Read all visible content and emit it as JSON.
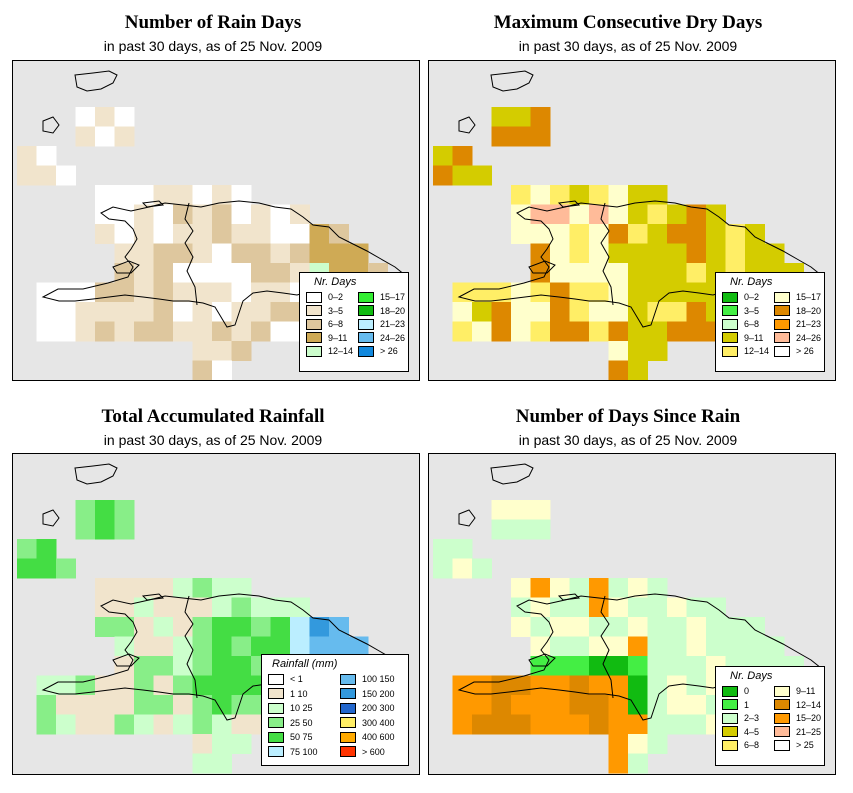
{
  "panels": [
    {
      "id": "rain-days",
      "title": "Number of Rain Days",
      "subtitle": "in past 30 days, as of  25 Nov. 2009",
      "legend": {
        "title": "Nr. Days",
        "items": [
          {
            "label": "0–2",
            "color": "#ffffff"
          },
          {
            "label": "3–5",
            "color": "#f1e4cc"
          },
          {
            "label": "6–8",
            "color": "#dec79e"
          },
          {
            "label": "9–11",
            "color": "#cfaa55"
          },
          {
            "label": "12–14",
            "color": "#ccfdcc"
          },
          {
            "label": "15–17",
            "color": "#33ee33"
          },
          {
            "label": "18–20",
            "color": "#11bb11"
          },
          {
            "label": "21–23",
            "color": "#bbeeff"
          },
          {
            "label": "24–26",
            "color": "#66bbee"
          },
          {
            "label": "> 26",
            "color": "#1188dd"
          }
        ]
      }
    },
    {
      "id": "dry-days",
      "title": "Maximum Consecutive Dry Days",
      "subtitle": "in past 30 days, as of  25 Nov. 2009",
      "legend": {
        "title": "Nr. Days",
        "items": [
          {
            "label": "0–2",
            "color": "#11bb11"
          },
          {
            "label": "3–5",
            "color": "#44ee44"
          },
          {
            "label": "6–8",
            "color": "#ccffcc"
          },
          {
            "label": "9–11",
            "color": "#d4cc00"
          },
          {
            "label": "12–14",
            "color": "#ffee66"
          },
          {
            "label": "15–17",
            "color": "#ffffcc"
          },
          {
            "label": "18–20",
            "color": "#dd8800"
          },
          {
            "label": "21–23",
            "color": "#ff9900"
          },
          {
            "label": "24–26",
            "color": "#ffbb99"
          },
          {
            "label": "> 26",
            "color": "#ffffff"
          }
        ]
      }
    },
    {
      "id": "rainfall",
      "title": "Total Accumulated Rainfall",
      "subtitle": "in past 30 days, as of  25 Nov. 2009",
      "legend": {
        "title": "Rainfall (mm)",
        "items": [
          {
            "label": "< 1",
            "color": "#ffffff"
          },
          {
            "label": "1    10",
            "color": "#f1e4cc"
          },
          {
            "label": "10    25",
            "color": "#ccffcc"
          },
          {
            "label": "25    50",
            "color": "#88ee88"
          },
          {
            "label": "50    75",
            "color": "#44dd44"
          },
          {
            "label": "75   100",
            "color": "#bbeeff"
          },
          {
            "label": "100   150",
            "color": "#66bbee"
          },
          {
            "label": "150   200",
            "color": "#3399dd"
          },
          {
            "label": "200   300",
            "color": "#2266cc"
          },
          {
            "label": "300   400",
            "color": "#ffee66"
          },
          {
            "label": "400   600",
            "color": "#ffaa00"
          },
          {
            "label": "> 600",
            "color": "#ff3300"
          }
        ]
      }
    },
    {
      "id": "days-since-rain",
      "title": "Number of Days Since Rain",
      "subtitle": "in past 30 days, as of  25 Nov. 2009",
      "legend": {
        "title": "Nr. Days",
        "items": [
          {
            "label": "0",
            "color": "#11bb11"
          },
          {
            "label": "1",
            "color": "#44ee44"
          },
          {
            "label": "2–3",
            "color": "#ccffcc"
          },
          {
            "label": "4–5",
            "color": "#d4cc00"
          },
          {
            "label": "6–8",
            "color": "#ffee66"
          },
          {
            "label": "9–11",
            "color": "#ffffcc"
          },
          {
            "label": "12–14",
            "color": "#dd8800"
          },
          {
            "label": "15–20",
            "color": "#ff9900"
          },
          {
            "label": "21–25",
            "color": "#ffbb99"
          },
          {
            "label": "> 25",
            "color": "#ffffff"
          }
        ]
      }
    }
  ]
}
